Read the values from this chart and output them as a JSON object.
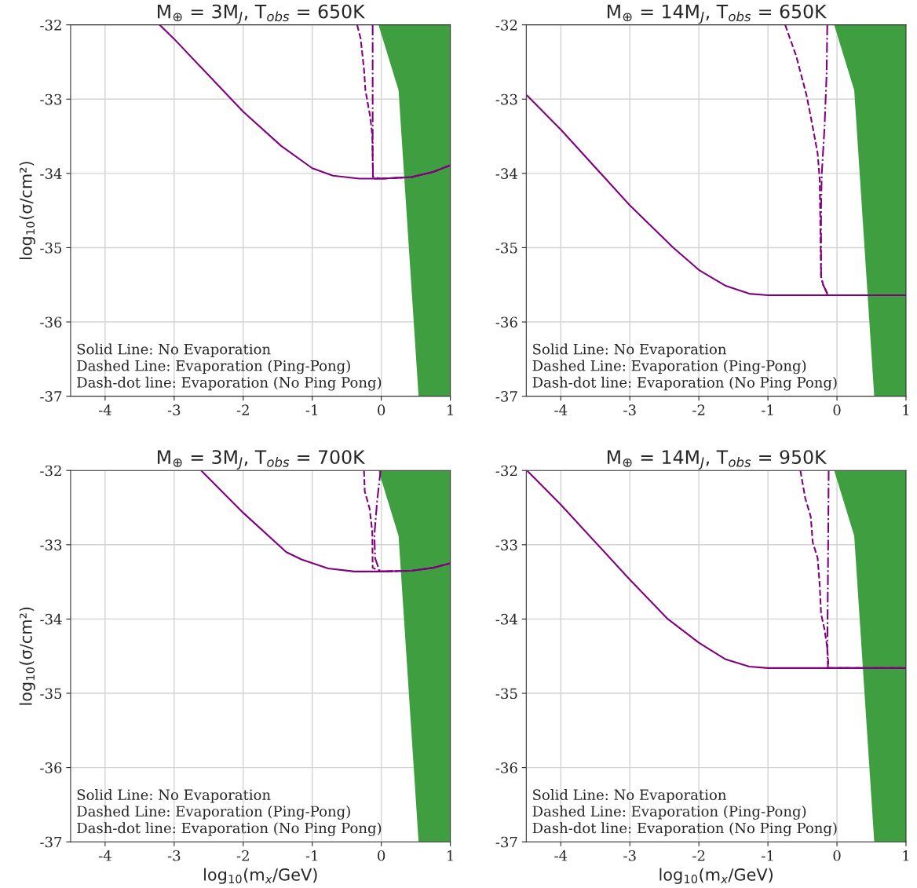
{
  "chart_data": [
    {
      "type": "line",
      "title": "M$_{⊕}$ = 3M$_{J}$, T$_{obs}$ = 650K",
      "ylabel": "log$_{10}$(σ/cm²)",
      "xlim": [
        -4.5,
        1
      ],
      "ylim": [
        -37,
        -32
      ],
      "xticks": [
        -4,
        -3,
        -2,
        -1,
        0,
        1
      ],
      "yticks": [
        -37,
        -36,
        -35,
        -34,
        -33,
        -32
      ],
      "grid": true,
      "annotations": [
        "Solid Line: No Evaporation",
        "Dashed Line: Evaporation (Ping-Pong)",
        "Dash-dot line: Evaporation (No Ping Pong)"
      ],
      "series": [
        {
          "type": "area",
          "color": "#3f9f40",
          "x": [
            -0.04,
            0.25,
            0.54,
            1
          ],
          "values": [
            -32,
            -32.88,
            -37,
            -37
          ]
        },
        {
          "color": "#800080",
          "line_style": "solid",
          "x": [
            -3.21,
            -3,
            -2,
            -1.45,
            -1,
            -0.7,
            -0.32,
            0,
            0.44,
            0.75,
            1
          ],
          "values": [
            -32,
            -32.19,
            -33.17,
            -33.63,
            -33.93,
            -34.03,
            -34.07,
            -34.07,
            -34.05,
            -33.98,
            -33.89
          ]
        },
        {
          "color": "#800080",
          "line_style": "dashed",
          "x": [
            -0.35,
            -0.3,
            -0.25,
            -0.23,
            -0.16,
            -0.13,
            -0.12,
            0,
            0.44,
            0.75,
            1
          ],
          "values": [
            -32,
            -32.18,
            -32.6,
            -32.88,
            -33.24,
            -33.49,
            -34.07,
            -34.07,
            -34.05,
            -33.98,
            -33.89
          ]
        },
        {
          "color": "#800080",
          "line_style": "dashdot",
          "x": [
            -0.125,
            -0.125,
            -0.12,
            0,
            0.44,
            0.75,
            1
          ],
          "values": [
            -32,
            -33.73,
            -34.05,
            -34.07,
            -34.05,
            -33.98,
            -33.89
          ]
        }
      ]
    },
    {
      "type": "line",
      "title": "M$_{⊕}$ = 14M$_{J}$, T$_{obs}$ = 650K",
      "xlim": [
        -4.5,
        1
      ],
      "ylim": [
        -37,
        -32
      ],
      "xticks": [
        -4,
        -3,
        -2,
        -1,
        0,
        1
      ],
      "yticks": [
        -37,
        -36,
        -35,
        -34,
        -33,
        -32
      ],
      "grid": true,
      "annotations": [
        "Solid Line: No Evaporation",
        "Dashed Line: Evaporation (Ping-Pong)",
        "Dash-dot line: Evaporation (No Ping Pong)"
      ],
      "series": [
        {
          "type": "area",
          "color": "#3f9f40",
          "x": [
            -0.04,
            0.25,
            0.54,
            1
          ],
          "values": [
            -32,
            -32.88,
            -37,
            -37
          ]
        },
        {
          "color": "#800080",
          "line_style": "solid",
          "x": [
            -4.49,
            -4,
            -3,
            -2.37,
            -2,
            -1.62,
            -1.27,
            -1,
            1
          ],
          "values": [
            -32.95,
            -33.41,
            -34.43,
            -35,
            -35.3,
            -35.51,
            -35.62,
            -35.64,
            -35.64
          ]
        },
        {
          "color": "#800080",
          "line_style": "dashed",
          "x": [
            -0.75,
            -0.59,
            -0.44,
            -0.35,
            -0.28,
            -0.25,
            -0.23,
            -0.2,
            -0.13,
            1
          ],
          "values": [
            -32,
            -32.42,
            -32.95,
            -33.38,
            -33.73,
            -34.08,
            -35.39,
            -35.5,
            -35.64,
            -35.64
          ]
        },
        {
          "color": "#800080",
          "line_style": "dashdot",
          "x": [
            -0.14,
            -0.15,
            -0.18,
            -0.22,
            -0.23,
            -0.23,
            -0.2,
            -0.13,
            1
          ],
          "values": [
            -32,
            -32.67,
            -33.38,
            -34.01,
            -34.44,
            -35.39,
            -35.5,
            -35.64,
            -35.64
          ]
        }
      ]
    },
    {
      "type": "line",
      "title": "M$_{⊕}$ = 3M$_{J}$, T$_{obs}$ = 700K",
      "xlabel": "log$_{10}$(m$_{x}$/GeV)",
      "ylabel": "log$_{10}$(σ/cm²)",
      "xlim": [
        -4.5,
        1
      ],
      "ylim": [
        -37,
        -32
      ],
      "xticks": [
        -4,
        -3,
        -2,
        -1,
        0,
        1
      ],
      "yticks": [
        -37,
        -36,
        -35,
        -34,
        -33,
        -32
      ],
      "grid": true,
      "annotations": [
        "Solid Line: No Evaporation",
        "Dashed Line: Evaporation (Ping-Pong)",
        "Dash-dot line: Evaporation (No Ping Pong)"
      ],
      "series": [
        {
          "type": "area",
          "color": "#3f9f40",
          "x": [
            -0.04,
            0.25,
            0.54,
            1
          ],
          "values": [
            -32,
            -32.88,
            -37,
            -37
          ]
        },
        {
          "color": "#800080",
          "line_style": "solid",
          "x": [
            -2.61,
            -2,
            -1.375,
            -1.15,
            -0.77,
            -0.39,
            0,
            0.44,
            0.75,
            1
          ],
          "values": [
            -32,
            -32.57,
            -33.1,
            -33.2,
            -33.32,
            -33.36,
            -33.36,
            -33.35,
            -33.31,
            -33.25
          ]
        },
        {
          "color": "#800080",
          "line_style": "dashed",
          "x": [
            -0.25,
            -0.24,
            -0.17,
            -0.13,
            -0.125,
            -0.03,
            0,
            0.44,
            0.75,
            1
          ],
          "values": [
            -32,
            -32.28,
            -32.51,
            -32.83,
            -33.31,
            -33.35,
            -33.36,
            -33.35,
            -33.31,
            -33.25
          ]
        },
        {
          "color": "#800080",
          "line_style": "dashdot",
          "x": [
            -0.01,
            -0.06,
            -0.1,
            -0.09,
            -0.03,
            0,
            0.44,
            0.75,
            1
          ],
          "values": [
            -32,
            -32.41,
            -32.87,
            -33.18,
            -33.34,
            -33.36,
            -33.35,
            -33.31,
            -33.25
          ]
        }
      ]
    },
    {
      "type": "line",
      "title": "M$_{⊕}$ = 14M$_{J}$, T$_{obs}$ = 950K",
      "xlabel": "log$_{10}$(m$_{x}$/GeV)",
      "xlim": [
        -4.5,
        1
      ],
      "ylim": [
        -37,
        -32
      ],
      "xticks": [
        -4,
        -3,
        -2,
        -1,
        0,
        1
      ],
      "yticks": [
        -37,
        -36,
        -35,
        -34,
        -33,
        -32
      ],
      "grid": true,
      "annotations": [
        "Solid Line: No Evaporation",
        "Dashed Line: Evaporation (Ping-Pong)",
        "Dash-dot line: Evaporation (No Ping Pong)"
      ],
      "series": [
        {
          "type": "area",
          "color": "#3f9f40",
          "x": [
            -0.04,
            0.25,
            0.54,
            1
          ],
          "values": [
            -32,
            -32.88,
            -37,
            -37
          ]
        },
        {
          "color": "#800080",
          "line_style": "solid",
          "x": [
            -4.49,
            -4,
            -3,
            -2.45,
            -2,
            -1.62,
            -1.27,
            -1,
            1
          ],
          "values": [
            -32,
            -32.46,
            -33.47,
            -34,
            -34.32,
            -34.54,
            -34.64,
            -34.66,
            -34.66
          ]
        },
        {
          "color": "#800080",
          "line_style": "dashed",
          "x": [
            -0.53,
            -0.46,
            -0.38,
            -0.35,
            -0.28,
            -0.25,
            -0.23,
            -0.18,
            -0.14,
            -0.12,
            1
          ],
          "values": [
            -32,
            -32.37,
            -32.62,
            -32.97,
            -33.18,
            -33.54,
            -33.93,
            -34.14,
            -34.39,
            -34.66,
            -34.66
          ]
        },
        {
          "color": "#800080",
          "line_style": "dashdot",
          "x": [
            -0.12,
            -0.13,
            -0.14,
            -0.13,
            1
          ],
          "values": [
            -32,
            -33.36,
            -34.42,
            -34.66,
            -34.66
          ]
        }
      ]
    }
  ]
}
